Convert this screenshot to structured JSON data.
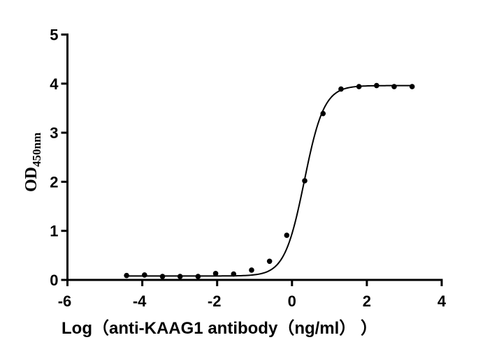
{
  "chart_data": {
    "type": "scatter",
    "title": "",
    "xlabel": "Log（anti-KAAG1 antibody（ng/ml）  ）",
    "ylabel": "OD",
    "ylabel_subscript": "450nm",
    "xlim": [
      -6,
      4
    ],
    "ylim": [
      0,
      5
    ],
    "xticks": [
      -6,
      -4,
      -2,
      0,
      2,
      4
    ],
    "yticks": [
      0,
      1,
      2,
      3,
      4,
      5
    ],
    "grid": false,
    "legend": null,
    "series": [
      {
        "name": "OD450nm",
        "marker": "circle",
        "color": "#000000",
        "x": [
          -4.42,
          -3.94,
          -3.46,
          -2.99,
          -2.51,
          -2.04,
          -1.56,
          -1.08,
          -0.6,
          -0.14,
          0.34,
          0.83,
          1.31,
          1.79,
          2.26,
          2.73,
          3.21
        ],
        "y": [
          0.09,
          0.1,
          0.07,
          0.07,
          0.07,
          0.13,
          0.12,
          0.2,
          0.38,
          0.91,
          2.02,
          3.39,
          3.89,
          3.94,
          3.96,
          3.94,
          3.94
        ]
      }
    ],
    "fit": {
      "type": "4PL sigmoid",
      "bottom": 0.08,
      "top": 3.96,
      "log_ec50": 0.33,
      "hill_slope": 1.65,
      "x_range": [
        -4.42,
        3.21
      ],
      "color": "#000000"
    }
  }
}
